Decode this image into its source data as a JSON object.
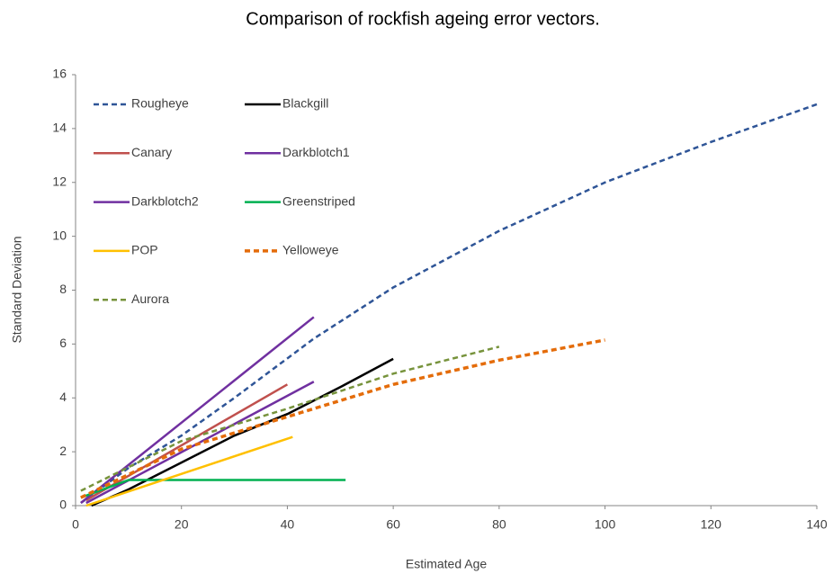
{
  "chart_data": {
    "type": "line",
    "title": "Comparison of rockfish ageing error vectors.",
    "x_label": "Estimated Age",
    "y_label": "Standard Deviation",
    "xlim": [
      0,
      140
    ],
    "xticks": [
      0,
      20,
      40,
      60,
      80,
      100,
      120,
      140
    ],
    "ylim": [
      0,
      16
    ],
    "yticks": [
      0,
      2,
      4,
      6,
      8,
      10,
      12,
      14,
      16
    ],
    "series": [
      {
        "name": "Rougheye",
        "color": "#2f5597",
        "dashed": true,
        "width": 2.5,
        "x": [
          1,
          10,
          20,
          30,
          45,
          60,
          80,
          100,
          120,
          140
        ],
        "values": [
          0.1,
          1.4,
          2.6,
          4.0,
          6.2,
          8.1,
          10.2,
          12.0,
          13.5,
          14.9
        ]
      },
      {
        "name": "Blackgill",
        "color": "#000000",
        "dashed": false,
        "width": 2.5,
        "x": [
          3,
          10,
          20,
          30,
          40,
          50,
          60
        ],
        "values": [
          0,
          0.6,
          1.6,
          2.6,
          3.4,
          4.4,
          5.45
        ]
      },
      {
        "name": "Canary",
        "color": "#c0504d",
        "dashed": false,
        "width": 2.5,
        "x": [
          2,
          40
        ],
        "values": [
          0.2,
          4.5
        ]
      },
      {
        "name": "Darkblotch1",
        "color": "#7030a0",
        "dashed": false,
        "width": 2.5,
        "x": [
          1,
          45
        ],
        "values": [
          0.1,
          7.0
        ]
      },
      {
        "name": "Darkblotch2",
        "color": "#7030a0",
        "dashed": false,
        "width": 2.5,
        "x": [
          2,
          45
        ],
        "values": [
          0.1,
          4.6
        ]
      },
      {
        "name": "Greenstriped",
        "color": "#00b050",
        "dashed": false,
        "width": 2.5,
        "x": [
          1,
          10,
          51
        ],
        "values": [
          0.3,
          0.95,
          0.95
        ]
      },
      {
        "name": "POP",
        "color": "#ffc000",
        "dashed": false,
        "width": 2.5,
        "x": [
          2,
          41
        ],
        "values": [
          0,
          2.55
        ]
      },
      {
        "name": "Yelloweye",
        "color": "#e46c0a",
        "dashed": true,
        "width": 3.5,
        "x": [
          1,
          20,
          40,
          60,
          80,
          100
        ],
        "values": [
          0.3,
          2.1,
          3.3,
          4.5,
          5.4,
          6.15
        ]
      },
      {
        "name": "Aurora",
        "color": "#77933c",
        "dashed": true,
        "width": 2.5,
        "x": [
          1,
          20,
          40,
          60,
          80
        ],
        "values": [
          0.55,
          2.4,
          3.6,
          4.9,
          5.9
        ]
      }
    ]
  }
}
